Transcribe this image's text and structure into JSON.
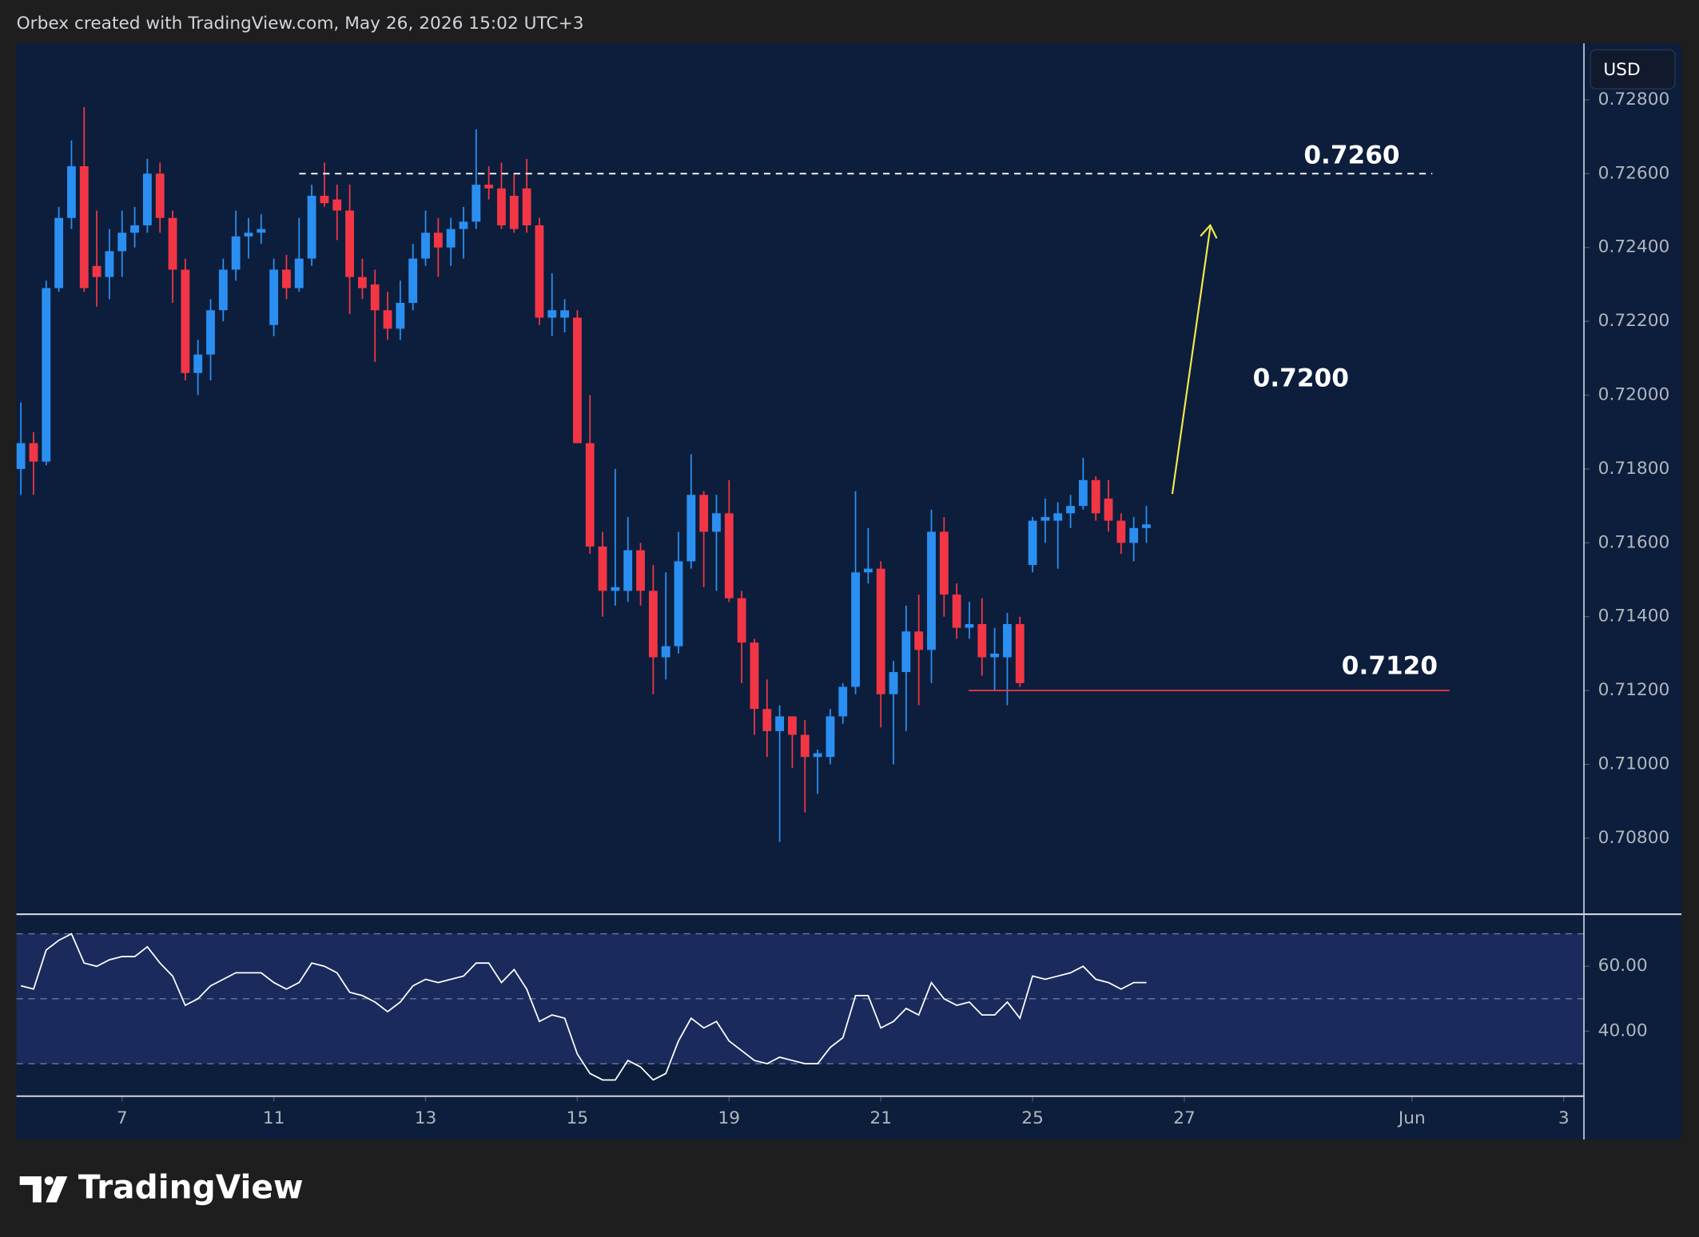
{
  "header": "Orbex created with TradingView.com, May 26, 2026 15:02 UTC+3",
  "currency": "USD",
  "footer_logo": "TradingView",
  "chart_data": [
    {
      "type": "candlestick",
      "open": [
        0.718,
        0.7187,
        0.7182,
        0.7229,
        0.7248,
        0.7262,
        0.7235,
        0.7232,
        0.7239,
        0.7244,
        0.7246,
        0.726,
        0.7248,
        0.7234,
        0.7206,
        0.7211,
        0.7223,
        0.7234,
        0.7243,
        0.7244,
        0.7219,
        0.7234,
        0.7229,
        0.7237,
        0.7254,
        0.7253,
        0.725,
        0.7232,
        0.723,
        0.7223,
        0.7218,
        0.7225,
        0.7237,
        0.7244,
        0.724,
        0.7245,
        0.7247,
        0.7257,
        0.7256,
        0.7254,
        0.7256,
        0.7246,
        0.7221,
        0.7221,
        0.7221,
        0.7187,
        0.7159,
        0.7147,
        0.7147,
        0.7158,
        0.7147,
        0.7129,
        0.7132,
        0.7155,
        0.7173,
        0.7163,
        0.7168,
        0.7145,
        0.7133,
        0.7115,
        0.7109,
        0.7113,
        0.7108,
        0.7102,
        0.7102,
        0.7113,
        0.7121,
        0.7152,
        0.7153,
        0.7119,
        0.7125,
        0.7136,
        0.7131,
        0.7163,
        0.7146,
        0.7137,
        0.7138,
        0.7129,
        0.7129,
        0.7138,
        0.7154,
        0.7166,
        0.7166,
        0.7168,
        0.717,
        0.7177,
        0.7172,
        0.7166,
        0.716,
        0.7164
      ],
      "high": [
        0.7198,
        0.719,
        0.7231,
        0.7251,
        0.7269,
        0.7278,
        0.725,
        0.7245,
        0.725,
        0.7251,
        0.7264,
        0.7263,
        0.725,
        0.7237,
        0.7215,
        0.7226,
        0.7237,
        0.725,
        0.7248,
        0.7249,
        0.7237,
        0.7238,
        0.7248,
        0.7257,
        0.7263,
        0.7257,
        0.7257,
        0.7237,
        0.7234,
        0.7228,
        0.7231,
        0.7241,
        0.725,
        0.7248,
        0.7248,
        0.7251,
        0.7272,
        0.7262,
        0.7263,
        0.726,
        0.7264,
        0.7248,
        0.7233,
        0.7226,
        0.7223,
        0.72,
        0.7163,
        0.718,
        0.7167,
        0.716,
        0.7154,
        0.7152,
        0.7163,
        0.7184,
        0.7174,
        0.7173,
        0.7177,
        0.7147,
        0.7134,
        0.7123,
        0.7116,
        0.7113,
        0.7112,
        0.7104,
        0.7115,
        0.7122,
        0.7174,
        0.7164,
        0.7155,
        0.7128,
        0.7143,
        0.7146,
        0.7169,
        0.7167,
        0.7149,
        0.7144,
        0.7145,
        0.7137,
        0.7141,
        0.714,
        0.7167,
        0.7172,
        0.7171,
        0.7173,
        0.7183,
        0.7178,
        0.7177,
        0.7168,
        0.7167,
        0.717
      ],
      "low": [
        0.7173,
        0.7173,
        0.7181,
        0.7228,
        0.7245,
        0.7228,
        0.7224,
        0.7226,
        0.7232,
        0.724,
        0.7244,
        0.7244,
        0.7225,
        0.7204,
        0.72,
        0.7204,
        0.722,
        0.7231,
        0.7237,
        0.7241,
        0.7216,
        0.7226,
        0.7228,
        0.7235,
        0.7251,
        0.7242,
        0.7222,
        0.7226,
        0.7209,
        0.7215,
        0.7215,
        0.7223,
        0.7235,
        0.7232,
        0.7235,
        0.7237,
        0.7245,
        0.7253,
        0.7245,
        0.7244,
        0.7244,
        0.7219,
        0.7216,
        0.7217,
        0.7187,
        0.7157,
        0.714,
        0.7143,
        0.7144,
        0.7143,
        0.7119,
        0.7123,
        0.713,
        0.7153,
        0.7148,
        0.7147,
        0.7144,
        0.7122,
        0.7108,
        0.7102,
        0.7079,
        0.7099,
        0.7087,
        0.7092,
        0.71,
        0.7111,
        0.7119,
        0.7149,
        0.711,
        0.71,
        0.7109,
        0.7116,
        0.7122,
        0.714,
        0.7134,
        0.7134,
        0.7124,
        0.712,
        0.7116,
        0.7121,
        0.7152,
        0.716,
        0.7153,
        0.7164,
        0.7169,
        0.7166,
        0.7163,
        0.7157,
        0.7155,
        0.716
      ],
      "close": [
        0.7187,
        0.7182,
        0.7229,
        0.7248,
        0.7262,
        0.7229,
        0.7232,
        0.7239,
        0.7244,
        0.7246,
        0.726,
        0.7248,
        0.7234,
        0.7206,
        0.7211,
        0.7223,
        0.7234,
        0.7243,
        0.7244,
        0.7245,
        0.7234,
        0.7229,
        0.7237,
        0.7254,
        0.7252,
        0.725,
        0.7232,
        0.7229,
        0.7223,
        0.7218,
        0.7225,
        0.7237,
        0.7244,
        0.724,
        0.7245,
        0.7247,
        0.7257,
        0.7256,
        0.7246,
        0.7245,
        0.7246,
        0.7221,
        0.7223,
        0.7223,
        0.7187,
        0.7159,
        0.7147,
        0.7148,
        0.7158,
        0.7147,
        0.7129,
        0.7132,
        0.7155,
        0.7173,
        0.7163,
        0.7168,
        0.7145,
        0.7133,
        0.7115,
        0.7109,
        0.7113,
        0.7108,
        0.7102,
        0.7103,
        0.7113,
        0.7121,
        0.7152,
        0.7153,
        0.7119,
        0.7125,
        0.7136,
        0.7131,
        0.7163,
        0.7146,
        0.7137,
        0.7138,
        0.7129,
        0.713,
        0.7138,
        0.7122,
        0.7166,
        0.7167,
        0.7168,
        0.717,
        0.7177,
        0.7168,
        0.7166,
        0.716,
        0.7164,
        0.7165
      ],
      "up_color": "#2b8ff2",
      "down_color": "#f23645",
      "xlim": [
        -0.35,
        123.6
      ],
      "xticks": [
        {
          "value": 8,
          "label": "7"
        },
        {
          "value": 20,
          "label": "11"
        },
        {
          "value": 32,
          "label": "13"
        },
        {
          "value": 44,
          "label": "15"
        },
        {
          "value": 56,
          "label": "19"
        },
        {
          "value": 68,
          "label": "21"
        },
        {
          "value": 80,
          "label": "25"
        },
        {
          "value": 92,
          "label": "27"
        },
        {
          "value": 110,
          "label": "Jun"
        },
        {
          "value": 122,
          "label": "3"
        }
      ],
      "ylim": [
        0.70597,
        0.72953
      ],
      "yticks": [
        {
          "value": 0.728,
          "label": "0.72800"
        },
        {
          "value": 0.726,
          "label": "0.72600"
        },
        {
          "value": 0.724,
          "label": "0.72400"
        },
        {
          "value": 0.722,
          "label": "0.72200"
        },
        {
          "value": 0.72,
          "label": "0.72000"
        },
        {
          "value": 0.718,
          "label": "0.71800"
        },
        {
          "value": 0.716,
          "label": "0.71600"
        },
        {
          "value": 0.714,
          "label": "0.71400"
        },
        {
          "value": 0.712,
          "label": "0.71200"
        },
        {
          "value": 0.71,
          "label": "0.71000"
        },
        {
          "value": 0.708,
          "label": "0.70800"
        }
      ],
      "annotations": [
        {
          "text": "0.7260",
          "value": 0.726,
          "style": "dashed",
          "color": "#ffffff"
        },
        {
          "text": "0.7200"
        },
        {
          "text": "0.7120",
          "value": 0.712,
          "style": "solid",
          "color": "#f23645"
        }
      ]
    },
    {
      "type": "line",
      "values": [
        54,
        53,
        65,
        68,
        70,
        61,
        60,
        62,
        63,
        63,
        66,
        61,
        57,
        48,
        50,
        54,
        56,
        58,
        58,
        58,
        55,
        53,
        55,
        61,
        60,
        58,
        52,
        51,
        49,
        46,
        49,
        54,
        56,
        55,
        56,
        57,
        61,
        61,
        55,
        59,
        53,
        43,
        45,
        44,
        33,
        27,
        25,
        25,
        31,
        29,
        25,
        27,
        37,
        44,
        41,
        43,
        37,
        34,
        31,
        30,
        32,
        31,
        30,
        30,
        35,
        38,
        51,
        51,
        41,
        43,
        47,
        45,
        55,
        50,
        48,
        49,
        45,
        45,
        49,
        44,
        57,
        56,
        57,
        58,
        60,
        56,
        55,
        53,
        55,
        55
      ],
      "color": "#ffffff",
      "xlim": [
        -0.35,
        123.6
      ],
      "ylim": [
        20,
        75.7
      ],
      "yticks": [
        {
          "value": 60,
          "label": "60.00"
        },
        {
          "value": 40,
          "label": "40.00"
        }
      ],
      "levels": [
        70,
        50,
        30
      ],
      "band_color": "#1a2a5c"
    }
  ]
}
